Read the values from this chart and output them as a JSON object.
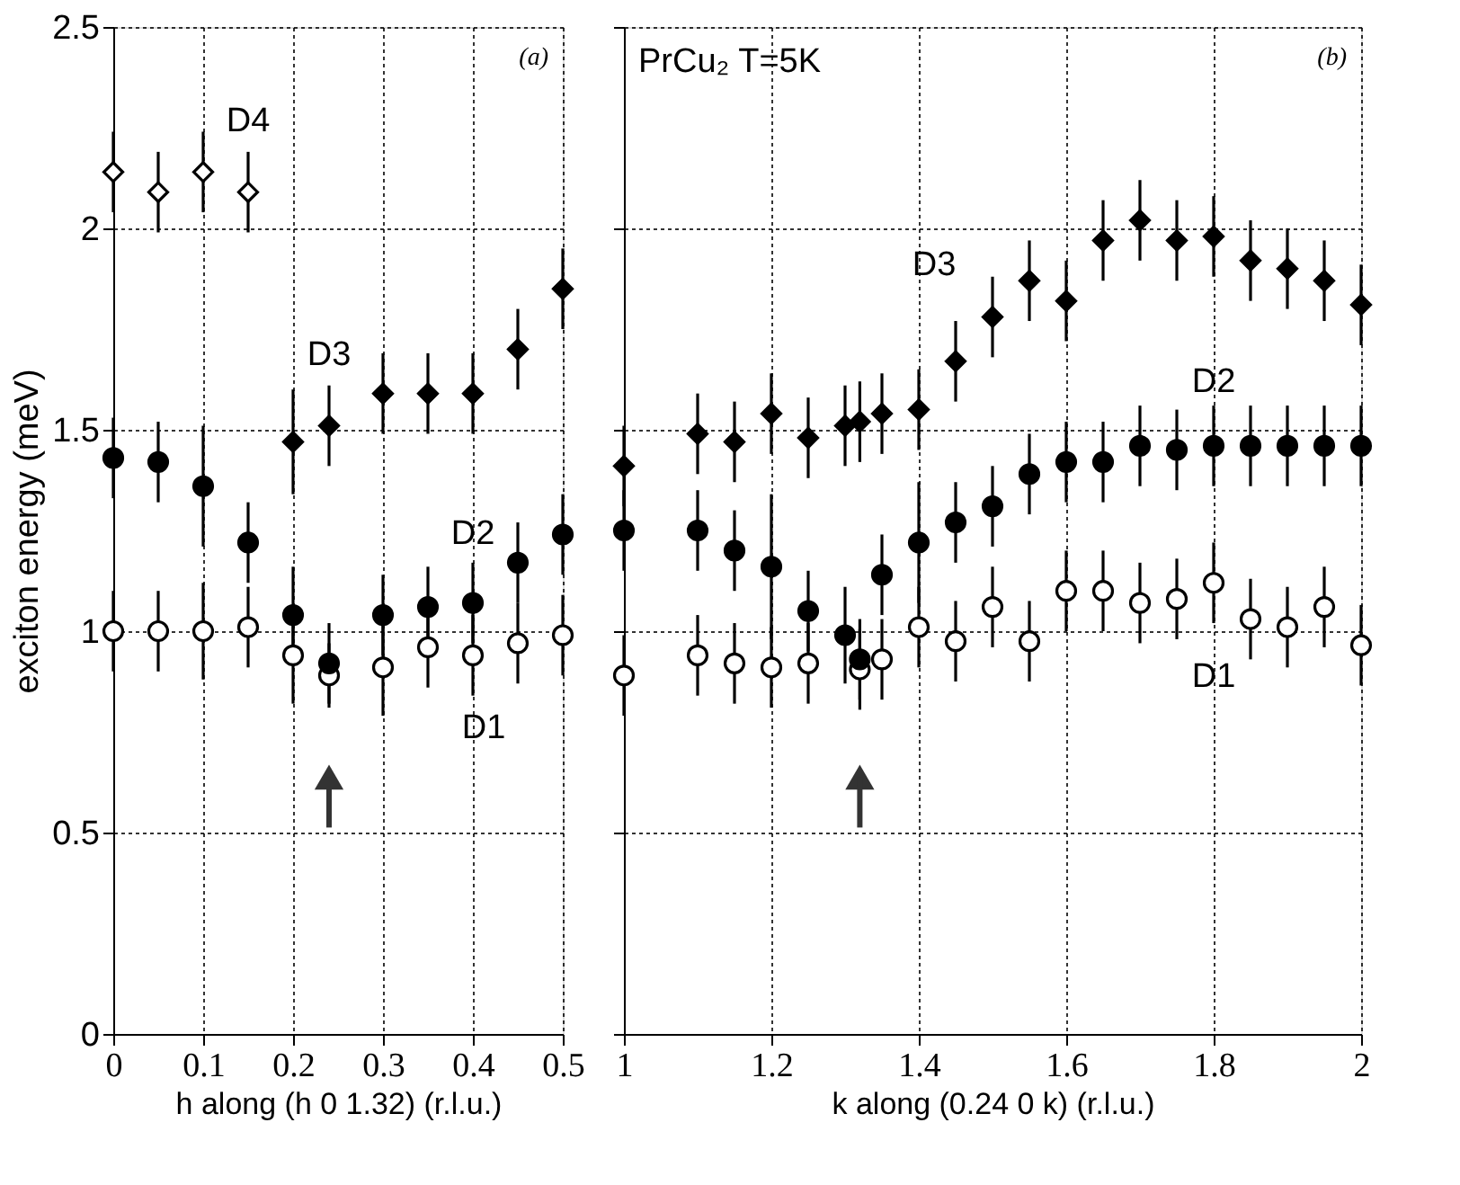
{
  "chart_data": [
    {
      "type": "scatter",
      "xlabel": "h along (h 0 1.32) (r.l.u.)",
      "ylabel": "exciton energy (meV)",
      "xlim": [
        0,
        0.5
      ],
      "xticks": [
        0,
        0.1,
        0.2,
        0.3,
        0.4,
        0.5
      ],
      "ylim": [
        0,
        2.5
      ],
      "yticks": [
        0,
        0.5,
        1,
        1.5,
        2,
        2.5
      ],
      "grid": true,
      "series": [
        {
          "name": "D1",
          "color": "#000000",
          "marker": "circle",
          "x": [
            0,
            0.05,
            0.1,
            0.15,
            0.2,
            0.24,
            0.3,
            0.35,
            0.4,
            0.45,
            0.5
          ],
          "values": [
            1.0,
            1.0,
            1.0,
            1.01,
            0.94,
            0.89,
            0.91,
            0.96,
            0.94,
            0.97,
            0.99
          ],
          "errors": [
            0.1,
            0.1,
            0.12,
            0.1,
            0.12,
            0.08,
            0.12,
            0.1,
            0.1,
            0.1,
            0.1
          ]
        },
        {
          "name": "D2",
          "color": "#000000",
          "marker": "circle",
          "x": [
            0,
            0.05,
            0.1,
            0.15,
            0.2,
            0.24,
            0.3,
            0.35,
            0.4,
            0.45,
            0.5
          ],
          "values": [
            1.43,
            1.42,
            1.36,
            1.22,
            1.04,
            0.92,
            1.04,
            1.06,
            1.07,
            1.17,
            1.24
          ],
          "errors": [
            0.1,
            0.1,
            0.15,
            0.1,
            0.12,
            0.1,
            0.1,
            0.1,
            0.1,
            0.1,
            0.1
          ]
        },
        {
          "name": "D3",
          "color": "#000000",
          "marker": "diamond",
          "x": [
            0.2,
            0.24,
            0.3,
            0.35,
            0.4,
            0.45,
            0.5
          ],
          "values": [
            1.47,
            1.51,
            1.59,
            1.59,
            1.59,
            1.7,
            1.85
          ],
          "errors": [
            0.13,
            0.1,
            0.1,
            0.1,
            0.1,
            0.1,
            0.1
          ]
        },
        {
          "name": "D4",
          "color": "#000000",
          "marker": "diamond",
          "x": [
            0,
            0.05,
            0.1,
            0.15
          ],
          "values": [
            2.14,
            2.09,
            2.14,
            2.09
          ],
          "errors": [
            0.1,
            0.1,
            0.1,
            0.1
          ]
        }
      ],
      "annotations": [
        "(a)"
      ]
    },
    {
      "type": "scatter",
      "xlabel": "k  along (0.24 0 k)  (r.l.u.)",
      "xlim": [
        1,
        2
      ],
      "xticks": [
        1,
        1.2,
        1.4,
        1.6,
        1.8,
        2
      ],
      "ylim": [
        0,
        2.5
      ],
      "yticks": [
        0,
        0.5,
        1,
        1.5,
        2,
        2.5
      ],
      "grid": true,
      "tick_labels": "x",
      "series": [
        {
          "name": "D1",
          "color": "#000000",
          "marker": "circle",
          "x": [
            1.0,
            1.1,
            1.15,
            1.2,
            1.25,
            1.3,
            1.32,
            1.35,
            1.4,
            1.45,
            1.5,
            1.55,
            1.6,
            1.65,
            1.7,
            1.75,
            1.8,
            1.85,
            1.9,
            1.95,
            2.0
          ],
          "values": [
            0.89,
            0.94,
            0.92,
            0.91,
            0.92,
            null,
            0.905,
            0.93,
            1.01,
            0.975,
            1.06,
            0.975,
            1.1,
            1.1,
            1.07,
            1.08,
            1.12,
            1.03,
            1.01,
            1.06,
            0.965
          ],
          "errors": [
            0.1,
            0.1,
            0.1,
            0.1,
            0.1,
            null,
            0.1,
            0.1,
            0.1,
            0.1,
            0.1,
            0.1,
            0.1,
            0.1,
            0.1,
            0.1,
            0.1,
            0.1,
            0.1,
            0.1,
            0.1
          ]
        },
        {
          "name": "D2",
          "color": "#000000",
          "marker": "circle",
          "x": [
            1.0,
            1.1,
            1.15,
            1.2,
            1.25,
            1.3,
            1.32,
            1.35,
            1.4,
            1.45,
            1.5,
            1.55,
            1.6,
            1.65,
            1.7,
            1.75,
            1.8,
            1.85,
            1.9,
            1.95,
            2.0
          ],
          "values": [
            1.25,
            1.25,
            1.2,
            1.16,
            1.05,
            0.99,
            0.93,
            1.14,
            1.22,
            1.27,
            1.31,
            1.39,
            1.42,
            1.42,
            1.46,
            1.45,
            1.46,
            1.46,
            1.46,
            1.46,
            1.46
          ],
          "errors": [
            0.1,
            0.1,
            0.1,
            0.18,
            0.1,
            0.12,
            0.1,
            0.1,
            0.15,
            0.1,
            0.1,
            0.1,
            0.1,
            0.1,
            0.1,
            0.1,
            0.1,
            0.1,
            0.1,
            0.1,
            0.1
          ]
        },
        {
          "name": "D3",
          "color": "#000000",
          "marker": "diamond",
          "x": [
            1.0,
            1.1,
            1.15,
            1.2,
            1.25,
            1.3,
            1.32,
            1.35,
            1.4,
            1.45,
            1.5,
            1.55,
            1.6,
            1.65,
            1.7,
            1.75,
            1.8,
            1.85,
            1.9,
            1.95,
            2.0
          ],
          "values": [
            1.41,
            1.49,
            1.47,
            1.54,
            1.48,
            1.51,
            1.52,
            1.54,
            1.55,
            1.67,
            1.78,
            1.87,
            1.82,
            1.97,
            2.02,
            1.97,
            1.98,
            1.92,
            1.9,
            1.87,
            1.81
          ],
          "errors": [
            0.1,
            0.1,
            0.1,
            0.1,
            0.1,
            0.1,
            0.1,
            0.1,
            0.1,
            0.1,
            0.1,
            0.1,
            0.1,
            0.1,
            0.1,
            0.1,
            0.1,
            0.1,
            0.1,
            0.1,
            0.1
          ]
        }
      ],
      "annotations": [
        "PrCu₂  T=5K",
        "(b)"
      ]
    }
  ]
}
